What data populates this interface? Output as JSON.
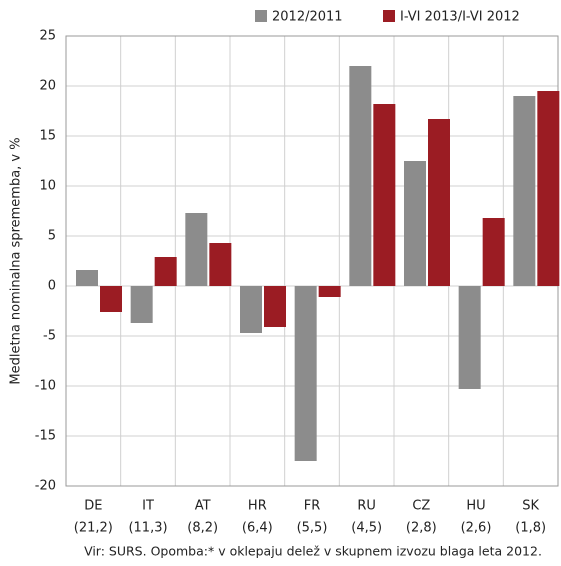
{
  "chart_data": {
    "type": "bar",
    "y_label": "Medletna nominalna sprememba, v %",
    "categories": [
      "DE",
      "IT",
      "AT",
      "HR",
      "FR",
      "RU",
      "CZ",
      "HU",
      "SK"
    ],
    "category_notes": [
      "(21,2)",
      "(11,3)",
      "(8,2)",
      "(6,4)",
      "(5,5)",
      "(4,5)",
      "(2,8)",
      "(2,6)",
      "(1,8)"
    ],
    "series": [
      {
        "name": "2012/2011",
        "color": "#8c8c8c",
        "values": [
          1.6,
          -3.7,
          7.3,
          -4.7,
          -17.5,
          22,
          12.5,
          -10.3,
          19
        ]
      },
      {
        "name": "I-VI 2013/I-VI 2012",
        "color": "#9b1c23",
        "values": [
          -2.6,
          2.9,
          4.3,
          -4.1,
          -1.1,
          18.2,
          16.7,
          6.8,
          19.5
        ]
      }
    ],
    "ylim": [
      -20,
      25
    ],
    "yticks": [
      -20,
      -15,
      -10,
      -5,
      0,
      5,
      10,
      15,
      20,
      25
    ],
    "grid": true,
    "note": "Vir: SURS. Opomba:* v oklepaju delež v skupnem izvozu blaga leta 2012."
  }
}
